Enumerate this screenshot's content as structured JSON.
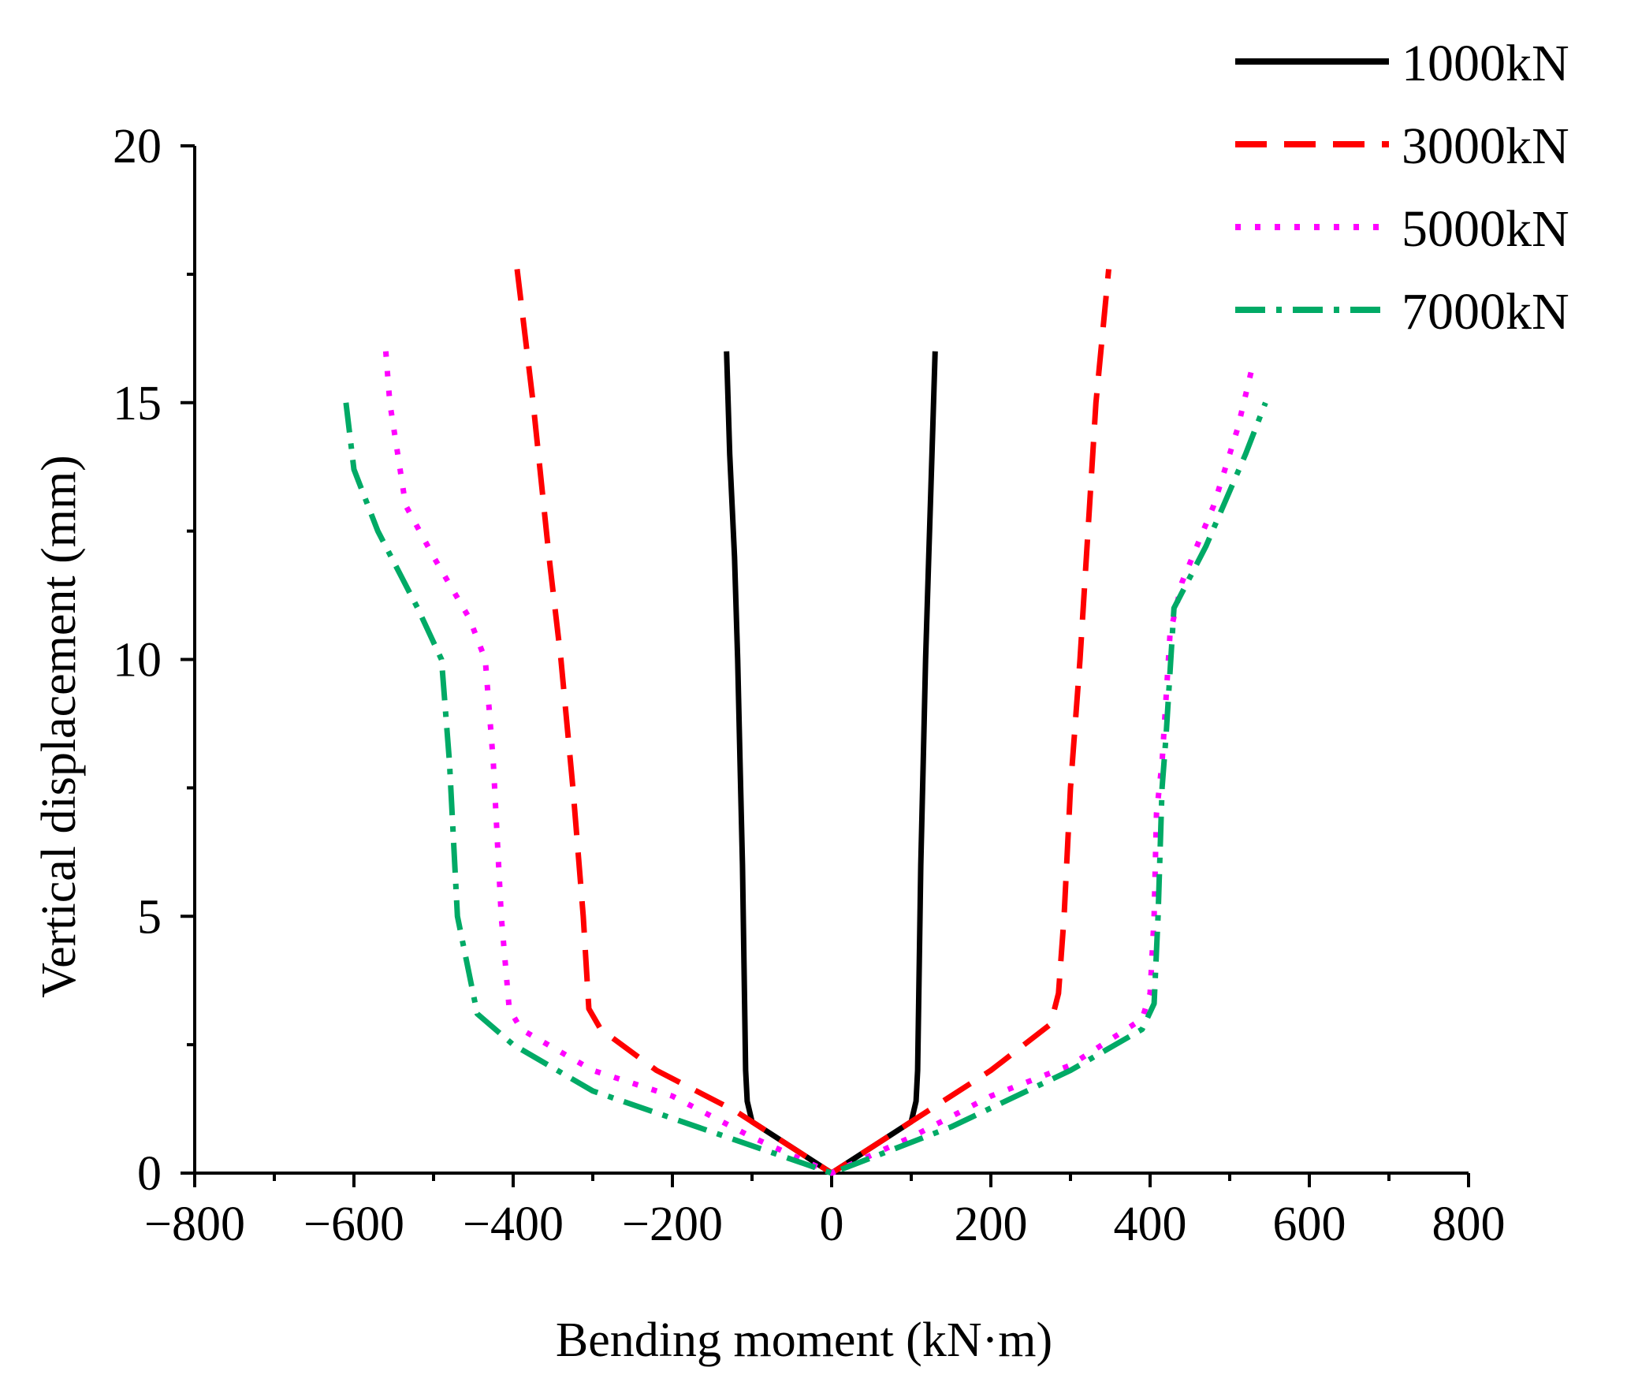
{
  "chart_data": {
    "type": "line",
    "title": "",
    "xlabel": "Bending moment  (kN·m)",
    "ylabel": "Vertical displacement  (mm)",
    "xlim": [
      -800,
      800
    ],
    "ylim": [
      0,
      20
    ],
    "xticks": [
      "−800",
      "−600",
      "−400",
      "−200",
      "0",
      "200",
      "400",
      "600",
      "800"
    ],
    "yticks": [
      "0",
      "5",
      "10",
      "15",
      "20"
    ],
    "legend_position": "top-right",
    "series": [
      {
        "name": "1000kN",
        "color": "#000000",
        "style": "solid",
        "points": [
          [
            -132,
            16
          ],
          [
            -128,
            14
          ],
          [
            -122,
            12
          ],
          [
            -118,
            10
          ],
          [
            -115,
            8
          ],
          [
            -112,
            6
          ],
          [
            -110,
            4
          ],
          [
            -108,
            2
          ],
          [
            -106,
            1.4
          ],
          [
            -100,
            1
          ],
          [
            0,
            0
          ],
          [
            100,
            1
          ],
          [
            106,
            1.4
          ],
          [
            108,
            2
          ],
          [
            110,
            4
          ],
          [
            112,
            6
          ],
          [
            115,
            8
          ],
          [
            118,
            10
          ],
          [
            122,
            12
          ],
          [
            126,
            14
          ],
          [
            130,
            16
          ]
        ]
      },
      {
        "name": "3000kN",
        "color": "#ff0000",
        "style": "dashed",
        "points": [
          [
            -395,
            17.6
          ],
          [
            -375,
            15
          ],
          [
            -355,
            12
          ],
          [
            -340,
            10
          ],
          [
            -325,
            7.5
          ],
          [
            -312,
            5
          ],
          [
            -305,
            3.2
          ],
          [
            -290,
            2.8
          ],
          [
            -220,
            2
          ],
          [
            -120,
            1.2
          ],
          [
            0,
            0
          ],
          [
            100,
            1
          ],
          [
            200,
            2
          ],
          [
            275,
            2.9
          ],
          [
            285,
            3.5
          ],
          [
            292,
            5
          ],
          [
            300,
            7.5
          ],
          [
            312,
            10
          ],
          [
            320,
            12
          ],
          [
            332,
            15
          ],
          [
            348,
            17.6
          ]
        ]
      },
      {
        "name": "5000kN",
        "color": "#ff00ff",
        "style": "dotted",
        "points": [
          [
            -560,
            16
          ],
          [
            -555,
            15
          ],
          [
            -535,
            13
          ],
          [
            -500,
            12
          ],
          [
            -455,
            10.8
          ],
          [
            -435,
            10
          ],
          [
            -425,
            8
          ],
          [
            -415,
            5
          ],
          [
            -405,
            3.2
          ],
          [
            -390,
            2.8
          ],
          [
            -300,
            2
          ],
          [
            -200,
            1.5
          ],
          [
            -100,
            0.7
          ],
          [
            0,
            0
          ],
          [
            100,
            0.7
          ],
          [
            200,
            1.5
          ],
          [
            300,
            2.1
          ],
          [
            390,
            3
          ],
          [
            400,
            3.5
          ],
          [
            405,
            5
          ],
          [
            408,
            7
          ],
          [
            415,
            8
          ],
          [
            425,
            10.5
          ],
          [
            440,
            11.5
          ],
          [
            480,
            13
          ],
          [
            510,
            14.5
          ],
          [
            530,
            15.8
          ]
        ]
      },
      {
        "name": "7000kN",
        "color": "#00aa66",
        "style": "dashdot",
        "points": [
          [
            -610,
            15
          ],
          [
            -600,
            13.7
          ],
          [
            -570,
            12.5
          ],
          [
            -520,
            11
          ],
          [
            -490,
            10
          ],
          [
            -480,
            8
          ],
          [
            -470,
            5
          ],
          [
            -445,
            3.1
          ],
          [
            -400,
            2.5
          ],
          [
            -300,
            1.6
          ],
          [
            -150,
            0.8
          ],
          [
            0,
            0
          ],
          [
            150,
            0.9
          ],
          [
            300,
            2
          ],
          [
            390,
            2.8
          ],
          [
            405,
            3.3
          ],
          [
            410,
            5
          ],
          [
            415,
            7.5
          ],
          [
            420,
            8.5
          ],
          [
            430,
            11
          ],
          [
            470,
            12.2
          ],
          [
            520,
            14
          ],
          [
            545,
            15
          ]
        ]
      }
    ]
  }
}
